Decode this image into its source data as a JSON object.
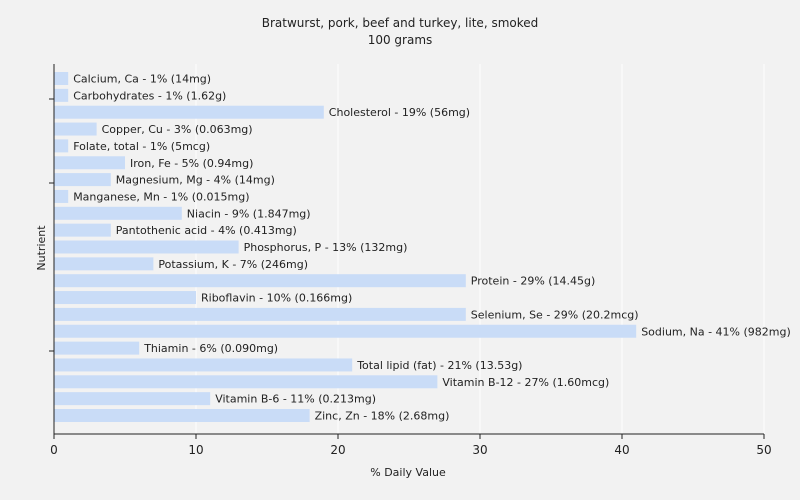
{
  "chart_data": {
    "type": "bar",
    "orientation": "horizontal",
    "title": "Bratwurst, pork, beef and turkey, lite, smoked",
    "subtitle": "100 grams",
    "xlabel": "% Daily Value",
    "ylabel": "Nutrient",
    "xlim": [
      0,
      50
    ],
    "xticks": [
      0,
      10,
      20,
      30,
      40,
      50
    ],
    "grid": true,
    "legend": "none",
    "bar_color": "#c9dcf7",
    "categories": [
      "Calcium, Ca",
      "Carbohydrates",
      "Cholesterol",
      "Copper, Cu",
      "Folate, total",
      "Iron, Fe",
      "Magnesium, Mg",
      "Manganese, Mn",
      "Niacin",
      "Pantothenic acid",
      "Phosphorus, P",
      "Potassium, K",
      "Protein",
      "Riboflavin",
      "Selenium, Se",
      "Sodium, Na",
      "Thiamin",
      "Total lipid (fat)",
      "Vitamin B-12",
      "Vitamin B-6",
      "Zinc, Zn"
    ],
    "values": [
      1,
      1,
      19,
      3,
      1,
      5,
      4,
      1,
      9,
      4,
      13,
      7,
      29,
      10,
      29,
      41,
      6,
      21,
      27,
      11,
      18
    ],
    "labels": [
      "Calcium, Ca - 1% (14mg)",
      "Carbohydrates - 1% (1.62g)",
      "Cholesterol - 19% (56mg)",
      "Copper, Cu - 3% (0.063mg)",
      "Folate, total - 1% (5mcg)",
      "Iron, Fe - 5% (0.94mg)",
      "Magnesium, Mg - 4% (14mg)",
      "Manganese, Mn - 1% (0.015mg)",
      "Niacin - 9% (1.847mg)",
      "Pantothenic acid - 4% (0.413mg)",
      "Phosphorus, P - 13% (132mg)",
      "Potassium, K - 7% (246mg)",
      "Protein - 29% (14.45g)",
      "Riboflavin - 10% (0.166mg)",
      "Selenium, Se - 29% (20.2mcg)",
      "Sodium, Na - 41% (982mg)",
      "Thiamin - 6% (0.090mg)",
      "Total lipid (fat) - 21% (13.53g)",
      "Vitamin B-12 - 27% (1.60mcg)",
      "Vitamin B-6 - 11% (0.213mg)",
      "Zinc, Zn - 18% (2.68mg)"
    ]
  }
}
